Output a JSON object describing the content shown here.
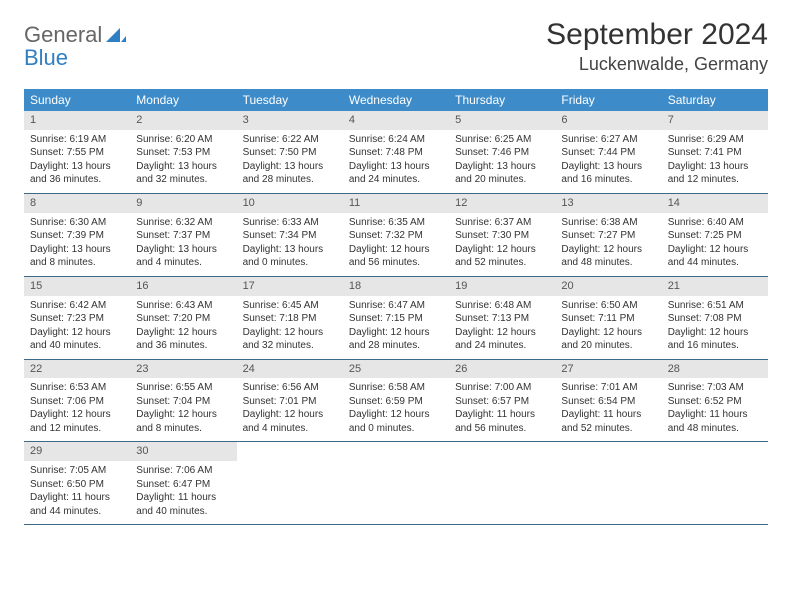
{
  "brand": {
    "general": "General",
    "blue": "Blue"
  },
  "title": "September 2024",
  "location": "Luckenwalde, Germany",
  "colors": {
    "header_bg": "#3d8bc9",
    "header_text": "#ffffff",
    "daynum_bg": "#e6e6e6",
    "row_border": "#3d6a8b",
    "brand_blue": "#2f7fc3"
  },
  "day_names": [
    "Sunday",
    "Monday",
    "Tuesday",
    "Wednesday",
    "Thursday",
    "Friday",
    "Saturday"
  ],
  "weeks": [
    [
      {
        "n": "1",
        "sr": "6:19 AM",
        "ss": "7:55 PM",
        "dl": "13 hours and 36 minutes."
      },
      {
        "n": "2",
        "sr": "6:20 AM",
        "ss": "7:53 PM",
        "dl": "13 hours and 32 minutes."
      },
      {
        "n": "3",
        "sr": "6:22 AM",
        "ss": "7:50 PM",
        "dl": "13 hours and 28 minutes."
      },
      {
        "n": "4",
        "sr": "6:24 AM",
        "ss": "7:48 PM",
        "dl": "13 hours and 24 minutes."
      },
      {
        "n": "5",
        "sr": "6:25 AM",
        "ss": "7:46 PM",
        "dl": "13 hours and 20 minutes."
      },
      {
        "n": "6",
        "sr": "6:27 AM",
        "ss": "7:44 PM",
        "dl": "13 hours and 16 minutes."
      },
      {
        "n": "7",
        "sr": "6:29 AM",
        "ss": "7:41 PM",
        "dl": "13 hours and 12 minutes."
      }
    ],
    [
      {
        "n": "8",
        "sr": "6:30 AM",
        "ss": "7:39 PM",
        "dl": "13 hours and 8 minutes."
      },
      {
        "n": "9",
        "sr": "6:32 AM",
        "ss": "7:37 PM",
        "dl": "13 hours and 4 minutes."
      },
      {
        "n": "10",
        "sr": "6:33 AM",
        "ss": "7:34 PM",
        "dl": "13 hours and 0 minutes."
      },
      {
        "n": "11",
        "sr": "6:35 AM",
        "ss": "7:32 PM",
        "dl": "12 hours and 56 minutes."
      },
      {
        "n": "12",
        "sr": "6:37 AM",
        "ss": "7:30 PM",
        "dl": "12 hours and 52 minutes."
      },
      {
        "n": "13",
        "sr": "6:38 AM",
        "ss": "7:27 PM",
        "dl": "12 hours and 48 minutes."
      },
      {
        "n": "14",
        "sr": "6:40 AM",
        "ss": "7:25 PM",
        "dl": "12 hours and 44 minutes."
      }
    ],
    [
      {
        "n": "15",
        "sr": "6:42 AM",
        "ss": "7:23 PM",
        "dl": "12 hours and 40 minutes."
      },
      {
        "n": "16",
        "sr": "6:43 AM",
        "ss": "7:20 PM",
        "dl": "12 hours and 36 minutes."
      },
      {
        "n": "17",
        "sr": "6:45 AM",
        "ss": "7:18 PM",
        "dl": "12 hours and 32 minutes."
      },
      {
        "n": "18",
        "sr": "6:47 AM",
        "ss": "7:15 PM",
        "dl": "12 hours and 28 minutes."
      },
      {
        "n": "19",
        "sr": "6:48 AM",
        "ss": "7:13 PM",
        "dl": "12 hours and 24 minutes."
      },
      {
        "n": "20",
        "sr": "6:50 AM",
        "ss": "7:11 PM",
        "dl": "12 hours and 20 minutes."
      },
      {
        "n": "21",
        "sr": "6:51 AM",
        "ss": "7:08 PM",
        "dl": "12 hours and 16 minutes."
      }
    ],
    [
      {
        "n": "22",
        "sr": "6:53 AM",
        "ss": "7:06 PM",
        "dl": "12 hours and 12 minutes."
      },
      {
        "n": "23",
        "sr": "6:55 AM",
        "ss": "7:04 PM",
        "dl": "12 hours and 8 minutes."
      },
      {
        "n": "24",
        "sr": "6:56 AM",
        "ss": "7:01 PM",
        "dl": "12 hours and 4 minutes."
      },
      {
        "n": "25",
        "sr": "6:58 AM",
        "ss": "6:59 PM",
        "dl": "12 hours and 0 minutes."
      },
      {
        "n": "26",
        "sr": "7:00 AM",
        "ss": "6:57 PM",
        "dl": "11 hours and 56 minutes."
      },
      {
        "n": "27",
        "sr": "7:01 AM",
        "ss": "6:54 PM",
        "dl": "11 hours and 52 minutes."
      },
      {
        "n": "28",
        "sr": "7:03 AM",
        "ss": "6:52 PM",
        "dl": "11 hours and 48 minutes."
      }
    ],
    [
      {
        "n": "29",
        "sr": "7:05 AM",
        "ss": "6:50 PM",
        "dl": "11 hours and 44 minutes."
      },
      {
        "n": "30",
        "sr": "7:06 AM",
        "ss": "6:47 PM",
        "dl": "11 hours and 40 minutes."
      },
      null,
      null,
      null,
      null,
      null
    ]
  ],
  "labels": {
    "sunrise": "Sunrise: ",
    "sunset": "Sunset: ",
    "daylight": "Daylight: "
  }
}
